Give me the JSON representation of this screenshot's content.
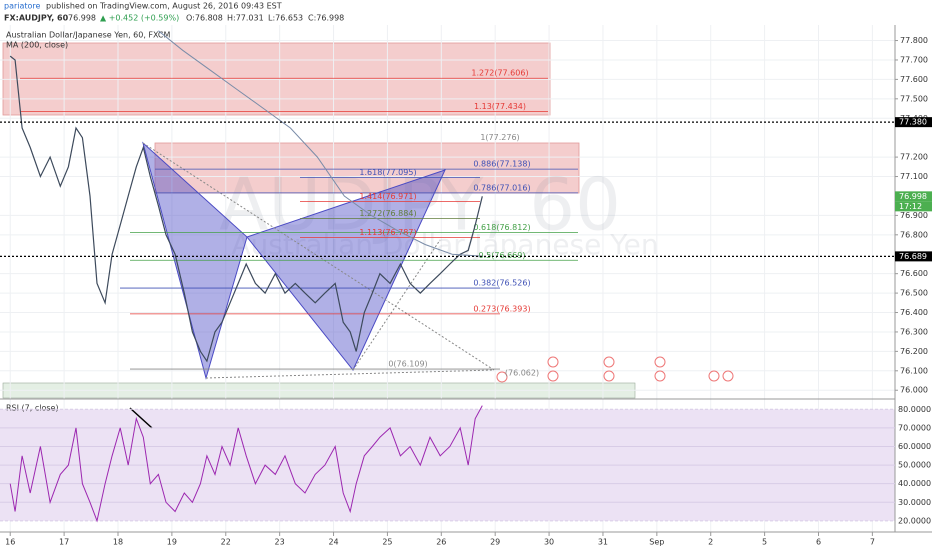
{
  "header": {
    "author": "pariatore",
    "published": "published on TradingView.com, August 26, 2016 09:43 EST",
    "symbol": "FX:AUDJPY, 60",
    "last": "76.998",
    "change": "▲ +0.452 (+0.59%)",
    "open": "O:76.808",
    "high": "H:77.031",
    "low": "L:76.653",
    "close": "C:76.998"
  },
  "watermark": {
    "symbol": "AUDJPY, 60",
    "name": "Australian Dollar/Japanese Yen"
  },
  "chart_data": [
    {
      "type": "line",
      "title": "Australian Dollar/Japanese Yen, 60, FXCM",
      "xlim": [
        -0.19,
        16.42
      ],
      "ylim": [
        75.96,
        77.88
      ],
      "xticks": [
        {
          "value": 0,
          "label": "16"
        },
        {
          "value": 1,
          "label": "17"
        },
        {
          "value": 2,
          "label": "18"
        },
        {
          "value": 3,
          "label": "19"
        },
        {
          "value": 4,
          "label": "22"
        },
        {
          "value": 5,
          "label": "23"
        },
        {
          "value": 6,
          "label": "24"
        },
        {
          "value": 7,
          "label": "25"
        },
        {
          "value": 8,
          "label": "26"
        },
        {
          "value": 9,
          "label": "29"
        },
        {
          "value": 10,
          "label": "30"
        },
        {
          "value": 11,
          "label": "31"
        },
        {
          "value": 12,
          "label": "Sep"
        },
        {
          "value": 13,
          "label": "2"
        },
        {
          "value": 14,
          "label": "5"
        },
        {
          "value": 15,
          "label": "6"
        },
        {
          "value": 16,
          "label": "7"
        }
      ],
      "yticks": [
        {
          "value": 77.8,
          "label": "77.800"
        },
        {
          "value": 77.7,
          "label": "77.700"
        },
        {
          "value": 77.6,
          "label": "77.600"
        },
        {
          "value": 77.5,
          "label": "77.500"
        },
        {
          "value": 77.4,
          "label": "77.400"
        },
        {
          "value": 77.2,
          "label": "77.200"
        },
        {
          "value": 77.1,
          "label": "77.100"
        },
        {
          "value": 76.9,
          "label": "76.900"
        },
        {
          "value": 76.8,
          "label": "76.800"
        },
        {
          "value": 76.6,
          "label": "76.600"
        },
        {
          "value": 76.5,
          "label": "76.500"
        },
        {
          "value": 76.4,
          "label": "76.400"
        },
        {
          "value": 76.3,
          "label": "76.300"
        },
        {
          "value": 76.2,
          "label": "76.200"
        },
        {
          "value": 76.1,
          "label": "76.100"
        },
        {
          "value": 76.0,
          "label": "76.000"
        }
      ],
      "grid": true,
      "series": [
        {
          "color": "#3d4a5c",
          "x": [
            0,
            0.09,
            0.22,
            0.37,
            0.56,
            0.74,
            0.93,
            1.08,
            1.22,
            1.34,
            1.48,
            1.61,
            1.76,
            1.89,
            2.04,
            2.19,
            2.34,
            2.47,
            2.6,
            2.75,
            2.89,
            3.06,
            3.23,
            3.38,
            3.53,
            3.65,
            3.8,
            3.93,
            4.08,
            4.23,
            4.38,
            4.55,
            4.73,
            4.92,
            5.1,
            5.29,
            5.47,
            5.66,
            5.84,
            6.03,
            6.18,
            6.31,
            6.42,
            6.57,
            6.72,
            6.86,
            7.05,
            7.24,
            7.42,
            7.61,
            7.79,
            7.98,
            8.16,
            8.35,
            8.5,
            8.63,
            8.76
          ],
          "values": [
            77.72,
            77.7,
            77.35,
            77.25,
            77.1,
            77.2,
            77.05,
            77.15,
            77.35,
            77.3,
            77.0,
            76.55,
            76.45,
            76.7,
            76.85,
            77.0,
            77.15,
            77.25,
            77.1,
            76.95,
            76.8,
            76.7,
            76.5,
            76.3,
            76.2,
            76.15,
            76.3,
            76.35,
            76.45,
            76.55,
            76.65,
            76.55,
            76.5,
            76.6,
            76.5,
            76.55,
            76.5,
            76.45,
            76.5,
            76.55,
            76.35,
            76.3,
            76.2,
            76.4,
            76.5,
            76.6,
            76.55,
            76.65,
            76.55,
            76.5,
            76.55,
            76.6,
            76.65,
            76.7,
            76.72,
            76.85,
            76.998
          ]
        },
        {
          "name": "MA (200, close)",
          "color": "#7a8ca8",
          "x": [
            2.75,
            3.2,
            3.7,
            4.2,
            4.7,
            5.2,
            5.7,
            6.2,
            6.7,
            7.2,
            7.7,
            8.2,
            8.76
          ],
          "values": [
            77.85,
            77.75,
            77.65,
            77.55,
            77.45,
            77.35,
            77.2,
            77.0,
            76.9,
            76.82,
            76.75,
            76.7,
            76.69
          ]
        }
      ],
      "price_labels": [
        {
          "value": 77.38,
          "label": "77.380",
          "color": "#000000"
        },
        {
          "value": 76.998,
          "label": "76.998",
          "color": "#4caf50"
        },
        {
          "value": 76.689,
          "label": "76.689",
          "color": "#000000"
        }
      ],
      "countdown": "17:12",
      "annotations": [
        {
          "label": "1.272(77.606)",
          "value": 77.606,
          "color": "#e53935"
        },
        {
          "label": "1.13(77.434)",
          "value": 77.434,
          "color": "#e53935"
        },
        {
          "label": "1(77.276)",
          "value": 77.276,
          "color": "#888888"
        },
        {
          "label": "0.886(77.138)",
          "value": 77.138,
          "color": "#3f51b5"
        },
        {
          "label": "1.618(77.095)",
          "value": 77.095,
          "color": "#3f51b5"
        },
        {
          "label": "0.786(77.016)",
          "value": 77.016,
          "color": "#3f51b5"
        },
        {
          "label": "1.414(76.971)",
          "value": 76.971,
          "color": "#e53935"
        },
        {
          "label": "1.272(76.884)",
          "value": 76.884,
          "color": "#607d3b"
        },
        {
          "label": "0.618(76.812)",
          "value": 76.812,
          "color": "#43a047"
        },
        {
          "label": "1.113(76.787)",
          "value": 76.787,
          "color": "#e53935"
        },
        {
          "label": "0.5(76.669)",
          "value": 76.669,
          "color": "#43a047"
        },
        {
          "label": "0.382(76.526)",
          "value": 76.526,
          "color": "#3f51b5"
        },
        {
          "label": "0.273(76.393)",
          "value": 76.393,
          "color": "#e53935"
        },
        {
          "label": "0(76.109)",
          "value": 76.109,
          "color": "#888888"
        },
        {
          "label": "(76.062)",
          "value": 76.062,
          "color": "#888888"
        }
      ]
    },
    {
      "type": "line",
      "title": "RSI (7, close)",
      "xlim": [
        -0.19,
        16.42
      ],
      "ylim": [
        14,
        85
      ],
      "yticks": [
        {
          "value": 80,
          "label": "80.0000"
        },
        {
          "value": 70,
          "label": "70.0000"
        },
        {
          "value": 60,
          "label": "60.0000"
        },
        {
          "value": 50,
          "label": "50.0000"
        },
        {
          "value": 40,
          "label": "40.0000"
        },
        {
          "value": 30,
          "label": "30.0000"
        },
        {
          "value": 20,
          "label": "20.0000"
        }
      ],
      "band": [
        20,
        80
      ],
      "series": [
        {
          "color": "#9c27b0",
          "x": [
            0,
            0.09,
            0.22,
            0.37,
            0.56,
            0.74,
            0.93,
            1.08,
            1.22,
            1.34,
            1.48,
            1.61,
            1.76,
            1.89,
            2.04,
            2.19,
            2.34,
            2.47,
            2.6,
            2.75,
            2.89,
            3.06,
            3.23,
            3.38,
            3.53,
            3.65,
            3.8,
            3.93,
            4.08,
            4.23,
            4.38,
            4.55,
            4.73,
            4.92,
            5.1,
            5.29,
            5.47,
            5.66,
            5.84,
            6.03,
            6.18,
            6.31,
            6.42,
            6.57,
            6.72,
            6.86,
            7.05,
            7.24,
            7.42,
            7.61,
            7.79,
            7.98,
            8.16,
            8.35,
            8.5,
            8.63,
            8.76
          ],
          "values": [
            40,
            25,
            55,
            35,
            60,
            30,
            45,
            50,
            70,
            40,
            30,
            20,
            40,
            55,
            70,
            50,
            75,
            65,
            40,
            45,
            30,
            25,
            35,
            30,
            40,
            55,
            45,
            60,
            50,
            70,
            55,
            40,
            50,
            45,
            55,
            40,
            35,
            45,
            50,
            60,
            35,
            25,
            40,
            55,
            60,
            65,
            70,
            55,
            60,
            50,
            65,
            55,
            60,
            70,
            50,
            75,
            82
          ]
        }
      ]
    }
  ]
}
